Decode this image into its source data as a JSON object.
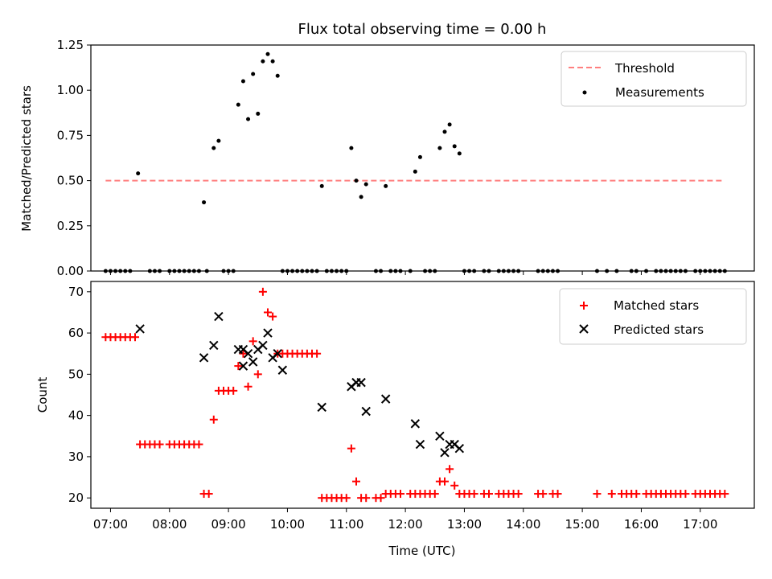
{
  "chart_data": [
    {
      "type": "scatter",
      "title": "Flux total observing time = 0.00 h",
      "xlabel": "",
      "ylabel": "Matched/Predicted stars",
      "ylim": [
        0,
        1.25
      ],
      "yticks": [
        "0.00",
        "0.25",
        "0.50",
        "0.75",
        "1.00",
        "1.25"
      ],
      "xlim": [
        "06:40",
        "17:55"
      ],
      "grid": false,
      "legend_position": "top-right",
      "threshold": {
        "name": "Threshold",
        "value": 0.5,
        "x_start": "06:55",
        "x_end": "17:25",
        "color": "#ff7f7f",
        "style": "dashed"
      },
      "series": [
        {
          "name": "Measurements",
          "color": "#000000",
          "marker": "dot",
          "points": [
            [
              "06:55",
              0
            ],
            [
              "07:00",
              0
            ],
            [
              "07:05",
              0
            ],
            [
              "07:10",
              0
            ],
            [
              "07:15",
              0
            ],
            [
              "07:20",
              0
            ],
            [
              "07:28",
              0.54
            ],
            [
              "07:40",
              0
            ],
            [
              "07:45",
              0
            ],
            [
              "07:50",
              0
            ],
            [
              "08:00",
              0
            ],
            [
              "08:05",
              0
            ],
            [
              "08:10",
              0
            ],
            [
              "08:15",
              0
            ],
            [
              "08:20",
              0
            ],
            [
              "08:25",
              0
            ],
            [
              "08:30",
              0
            ],
            [
              "08:35",
              0.38
            ],
            [
              "08:38",
              0
            ],
            [
              "08:45",
              0.68
            ],
            [
              "08:50",
              0.72
            ],
            [
              "08:55",
              0
            ],
            [
              "09:00",
              0
            ],
            [
              "09:05",
              0
            ],
            [
              "09:10",
              0.92
            ],
            [
              "09:15",
              1.05
            ],
            [
              "09:20",
              0.84
            ],
            [
              "09:25",
              1.09
            ],
            [
              "09:30",
              0.87
            ],
            [
              "09:35",
              1.16
            ],
            [
              "09:40",
              1.2
            ],
            [
              "09:45",
              1.16
            ],
            [
              "09:50",
              1.08
            ],
            [
              "09:55",
              0
            ],
            [
              "10:00",
              0
            ],
            [
              "10:05",
              0
            ],
            [
              "10:10",
              0
            ],
            [
              "10:15",
              0
            ],
            [
              "10:20",
              0
            ],
            [
              "10:25",
              0
            ],
            [
              "10:30",
              0
            ],
            [
              "10:35",
              0.47
            ],
            [
              "10:40",
              0
            ],
            [
              "10:45",
              0
            ],
            [
              "10:50",
              0
            ],
            [
              "10:55",
              0
            ],
            [
              "11:00",
              0
            ],
            [
              "11:05",
              0.68
            ],
            [
              "11:10",
              0.5
            ],
            [
              "11:15",
              0.41
            ],
            [
              "11:20",
              0.48
            ],
            [
              "11:30",
              0
            ],
            [
              "11:35",
              0
            ],
            [
              "11:40",
              0.47
            ],
            [
              "11:45",
              0
            ],
            [
              "11:50",
              0
            ],
            [
              "11:55",
              0
            ],
            [
              "12:05",
              0
            ],
            [
              "12:10",
              0.55
            ],
            [
              "12:15",
              0.63
            ],
            [
              "12:20",
              0
            ],
            [
              "12:25",
              0
            ],
            [
              "12:30",
              0
            ],
            [
              "12:35",
              0.68
            ],
            [
              "12:40",
              0.77
            ],
            [
              "12:45",
              0.81
            ],
            [
              "12:50",
              0.69
            ],
            [
              "12:55",
              0.65
            ],
            [
              "13:00",
              0
            ],
            [
              "13:05",
              0
            ],
            [
              "13:10",
              0
            ],
            [
              "13:20",
              0
            ],
            [
              "13:25",
              0
            ],
            [
              "13:35",
              0
            ],
            [
              "13:40",
              0
            ],
            [
              "13:45",
              0
            ],
            [
              "13:50",
              0
            ],
            [
              "13:55",
              0
            ],
            [
              "14:15",
              0
            ],
            [
              "14:20",
              0
            ],
            [
              "14:25",
              0
            ],
            [
              "14:30",
              0
            ],
            [
              "14:35",
              0
            ],
            [
              "15:15",
              0
            ],
            [
              "15:25",
              0
            ],
            [
              "15:35",
              0
            ],
            [
              "15:50",
              0
            ],
            [
              "15:55",
              0
            ],
            [
              "16:05",
              0
            ],
            [
              "16:15",
              0
            ],
            [
              "16:20",
              0
            ],
            [
              "16:25",
              0
            ],
            [
              "16:30",
              0
            ],
            [
              "16:35",
              0
            ],
            [
              "16:40",
              0
            ],
            [
              "16:45",
              0
            ],
            [
              "16:55",
              0
            ],
            [
              "17:00",
              0
            ],
            [
              "17:05",
              0
            ],
            [
              "17:10",
              0
            ],
            [
              "17:15",
              0
            ],
            [
              "17:20",
              0
            ],
            [
              "17:25",
              0
            ]
          ]
        }
      ]
    },
    {
      "type": "scatter",
      "title": "",
      "xlabel": "Time (UTC)",
      "ylabel": "Count",
      "ylim": [
        17.5,
        72.5
      ],
      "yticks": [
        "20",
        "30",
        "40",
        "50",
        "60",
        "70"
      ],
      "xlim": [
        "06:40",
        "17:55"
      ],
      "xticks": [
        "07:00",
        "08:00",
        "09:00",
        "10:00",
        "11:00",
        "12:00",
        "13:00",
        "14:00",
        "15:00",
        "16:00",
        "17:00"
      ],
      "grid": false,
      "legend_position": "top-right",
      "series": [
        {
          "name": "Matched stars",
          "color": "#ff0000",
          "marker": "plus",
          "points": [
            [
              "06:55",
              59
            ],
            [
              "07:00",
              59
            ],
            [
              "07:05",
              59
            ],
            [
              "07:10",
              59
            ],
            [
              "07:15",
              59
            ],
            [
              "07:20",
              59
            ],
            [
              "07:25",
              59
            ],
            [
              "07:30",
              33
            ],
            [
              "07:35",
              33
            ],
            [
              "07:40",
              33
            ],
            [
              "07:45",
              33
            ],
            [
              "07:50",
              33
            ],
            [
              "08:00",
              33
            ],
            [
              "08:05",
              33
            ],
            [
              "08:10",
              33
            ],
            [
              "08:15",
              33
            ],
            [
              "08:20",
              33
            ],
            [
              "08:25",
              33
            ],
            [
              "08:30",
              33
            ],
            [
              "08:35",
              21
            ],
            [
              "08:40",
              21
            ],
            [
              "08:45",
              39
            ],
            [
              "08:50",
              46
            ],
            [
              "08:55",
              46
            ],
            [
              "09:00",
              46
            ],
            [
              "09:05",
              46
            ],
            [
              "09:10",
              52
            ],
            [
              "09:15",
              55
            ],
            [
              "09:20",
              47
            ],
            [
              "09:25",
              58
            ],
            [
              "09:30",
              50
            ],
            [
              "09:35",
              70
            ],
            [
              "09:40",
              65
            ],
            [
              "09:45",
              64
            ],
            [
              "09:50",
              55
            ],
            [
              "09:55",
              55
            ],
            [
              "10:00",
              55
            ],
            [
              "10:05",
              55
            ],
            [
              "10:10",
              55
            ],
            [
              "10:15",
              55
            ],
            [
              "10:20",
              55
            ],
            [
              "10:25",
              55
            ],
            [
              "10:30",
              55
            ],
            [
              "10:35",
              20
            ],
            [
              "10:40",
              20
            ],
            [
              "10:45",
              20
            ],
            [
              "10:50",
              20
            ],
            [
              "10:55",
              20
            ],
            [
              "11:00",
              20
            ],
            [
              "11:05",
              32
            ],
            [
              "11:10",
              24
            ],
            [
              "11:15",
              20
            ],
            [
              "11:20",
              20
            ],
            [
              "11:30",
              20
            ],
            [
              "11:35",
              20
            ],
            [
              "11:40",
              21
            ],
            [
              "11:45",
              21
            ],
            [
              "11:50",
              21
            ],
            [
              "11:55",
              21
            ],
            [
              "12:05",
              21
            ],
            [
              "12:10",
              21
            ],
            [
              "12:15",
              21
            ],
            [
              "12:20",
              21
            ],
            [
              "12:25",
              21
            ],
            [
              "12:30",
              21
            ],
            [
              "12:35",
              24
            ],
            [
              "12:40",
              24
            ],
            [
              "12:45",
              27
            ],
            [
              "12:50",
              23
            ],
            [
              "12:55",
              21
            ],
            [
              "13:00",
              21
            ],
            [
              "13:05",
              21
            ],
            [
              "13:10",
              21
            ],
            [
              "13:20",
              21
            ],
            [
              "13:25",
              21
            ],
            [
              "13:35",
              21
            ],
            [
              "13:40",
              21
            ],
            [
              "13:45",
              21
            ],
            [
              "13:50",
              21
            ],
            [
              "13:55",
              21
            ],
            [
              "14:15",
              21
            ],
            [
              "14:20",
              21
            ],
            [
              "14:30",
              21
            ],
            [
              "14:35",
              21
            ],
            [
              "15:15",
              21
            ],
            [
              "15:30",
              21
            ],
            [
              "15:40",
              21
            ],
            [
              "15:45",
              21
            ],
            [
              "15:50",
              21
            ],
            [
              "15:55",
              21
            ],
            [
              "16:05",
              21
            ],
            [
              "16:10",
              21
            ],
            [
              "16:15",
              21
            ],
            [
              "16:20",
              21
            ],
            [
              "16:25",
              21
            ],
            [
              "16:30",
              21
            ],
            [
              "16:35",
              21
            ],
            [
              "16:40",
              21
            ],
            [
              "16:45",
              21
            ],
            [
              "16:55",
              21
            ],
            [
              "17:00",
              21
            ],
            [
              "17:05",
              21
            ],
            [
              "17:10",
              21
            ],
            [
              "17:15",
              21
            ],
            [
              "17:20",
              21
            ],
            [
              "17:25",
              21
            ]
          ]
        },
        {
          "name": "Predicted stars",
          "color": "#000000",
          "marker": "x",
          "points": [
            [
              "07:30",
              61
            ],
            [
              "08:35",
              54
            ],
            [
              "08:45",
              57
            ],
            [
              "08:50",
              64
            ],
            [
              "09:10",
              56
            ],
            [
              "09:15",
              52
            ],
            [
              "09:15",
              56
            ],
            [
              "09:20",
              55
            ],
            [
              "09:25",
              53
            ],
            [
              "09:30",
              56
            ],
            [
              "09:35",
              57
            ],
            [
              "09:40",
              60
            ],
            [
              "09:45",
              54
            ],
            [
              "09:50",
              55
            ],
            [
              "09:55",
              51
            ],
            [
              "10:35",
              42
            ],
            [
              "11:05",
              47
            ],
            [
              "11:10",
              48
            ],
            [
              "11:15",
              48
            ],
            [
              "11:20",
              41
            ],
            [
              "11:40",
              44
            ],
            [
              "12:10",
              38
            ],
            [
              "12:15",
              33
            ],
            [
              "12:35",
              35
            ],
            [
              "12:40",
              31
            ],
            [
              "12:45",
              33
            ],
            [
              "12:50",
              33
            ],
            [
              "12:55",
              32
            ]
          ]
        }
      ]
    }
  ]
}
